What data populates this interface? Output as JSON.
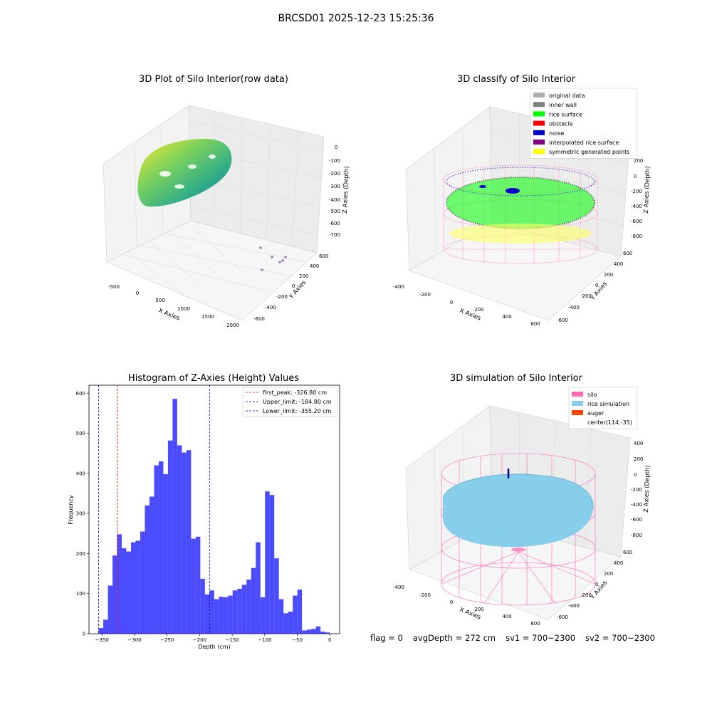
{
  "suptitle": "BRCSD01 2025-12-23 15:25:36",
  "panels": {
    "raw": {
      "title": "3D Plot of Silo Interior(row data)",
      "xlabel": "X Axies",
      "ylabel": "Y Axies",
      "zlabel": "Z Axies (Depth)",
      "xticks": [
        "-500",
        "0",
        "500",
        "1000",
        "1500",
        "2000"
      ],
      "yticks": [
        "600",
        "400",
        "200",
        "0",
        "-200",
        "-400",
        "-600"
      ],
      "zticks": [
        "0",
        "-100",
        "-200",
        "-300",
        "-400",
        "-500",
        "-600",
        "-700"
      ]
    },
    "classify": {
      "title": "3D classify of Silo Interior",
      "xlabel": "X Axies",
      "ylabel": "Y Axies",
      "zlabel": "Z Axies (Depth)",
      "xticks": [
        "-400",
        "-200",
        "0",
        "200",
        "400",
        "600"
      ],
      "yticks": [
        "600",
        "400",
        "200",
        "0",
        "-200",
        "-400",
        "-600"
      ],
      "zticks": [
        "200",
        "0",
        "-200",
        "-400",
        "-600",
        "-800"
      ],
      "legend": [
        {
          "label": "original data",
          "color": "#b0b0b0"
        },
        {
          "label": "inner wall",
          "color": "#808080"
        },
        {
          "label": "rice surface",
          "color": "#00ff00"
        },
        {
          "label": "obstacle",
          "color": "#ff0000"
        },
        {
          "label": "noise",
          "color": "#0000cc"
        },
        {
          "label": "interpolated rice surface",
          "color": "#800080"
        },
        {
          "label": "symmetric generated points",
          "color": "#ffff00"
        }
      ]
    },
    "simulation": {
      "title": "3D simulation of Silo Interior",
      "xlabel": "X Axies",
      "ylabel": "Y Axies",
      "zlabel": "Z Axies (Depth)",
      "xticks": [
        "-400",
        "-200",
        "0",
        "200",
        "400",
        "600"
      ],
      "yticks": [
        "600",
        "400",
        "200",
        "0",
        "-200",
        "-400",
        "-600"
      ],
      "zticks": [
        "400",
        "200",
        "0",
        "-200",
        "-400",
        "-600",
        "-800"
      ],
      "legend": [
        {
          "label": "silo",
          "color": "#ff69b4"
        },
        {
          "label": "rice simulation",
          "color": "#87ceeb"
        },
        {
          "label": "auger",
          "color": "#ff4500"
        },
        {
          "label": "center(114,-35)",
          "color": ""
        }
      ]
    }
  },
  "footer": {
    "flag": "flag = 0",
    "avg": "avgDepth = 272 cm",
    "sv1": "sv1 = 700~2300",
    "sv2": "sv2 = 700~2300"
  },
  "chart_data": {
    "type": "bar",
    "title": "Histogram of Z-Axies (Height) Values",
    "xlabel": "Depth (cm)",
    "ylabel": "Frequency",
    "xlim": [
      -370,
      15
    ],
    "ylim": [
      0,
      620
    ],
    "xticks": [
      -350,
      -300,
      -250,
      -200,
      -150,
      -100,
      -50,
      0
    ],
    "yticks": [
      0,
      100,
      200,
      300,
      400,
      500,
      600
    ],
    "bin_start": -355.2,
    "bin_width": 7.1,
    "values": [
      14,
      35,
      120,
      195,
      248,
      213,
      205,
      228,
      232,
      255,
      320,
      342,
      420,
      430,
      398,
      482,
      586,
      470,
      452,
      458,
      237,
      242,
      137,
      98,
      108,
      86,
      92,
      91,
      95,
      108,
      112,
      122,
      135,
      164,
      228,
      91,
      355,
      346,
      188,
      86,
      51,
      55,
      95,
      110,
      8,
      10,
      12,
      18,
      5,
      3
    ],
    "bar_color": "#0000ff",
    "vlines": [
      {
        "label": "first_peak: -326.80 cm",
        "x": -326.8,
        "color": "#ff0000"
      },
      {
        "label": "Upper_limit: -184.80 cm",
        "x": -184.8,
        "color": "#0000cc"
      },
      {
        "label": "Lower_limit: -355.20 cm",
        "x": -355.2,
        "color": "#0000cc"
      }
    ],
    "legend_position": "upper right"
  }
}
